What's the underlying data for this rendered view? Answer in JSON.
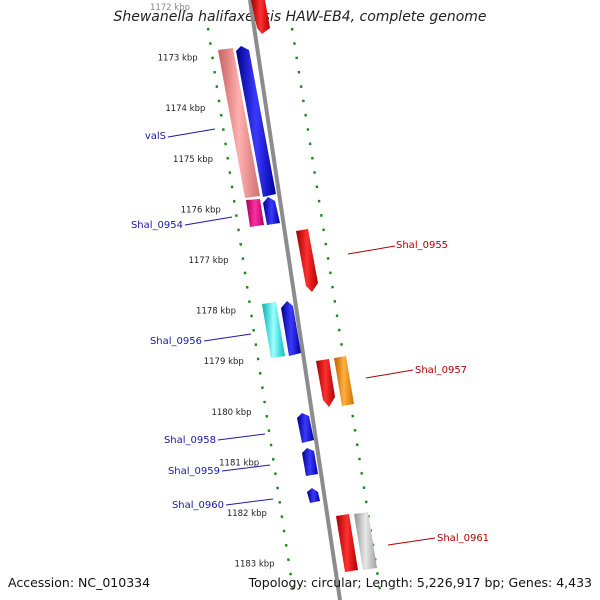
{
  "title": "Shewanella halifaxensis HAW-EB4, complete genome",
  "footer": {
    "accession": "Accession: NC_010334",
    "summary": "Topology: circular; Length: 5,226,917 bp; Genes: 4,433"
  },
  "colors": {
    "backbone": "#8c8c8c",
    "dots": "#1a8a1a",
    "label_left": "#1a1aa6",
    "label_right": "#b00000"
  },
  "ticks": [
    "1172 kbp",
    "1173 kbp",
    "1174 kbp",
    "1175 kbp",
    "1176 kbp",
    "1177 kbp",
    "1178 kbp",
    "1179 kbp",
    "1180 kbp",
    "1181 kbp",
    "1182 kbp",
    "1183 kbp"
  ],
  "genes": [
    {
      "id": "top_red",
      "color": "#ff0000",
      "label": "",
      "side": "right"
    },
    {
      "id": "valS_bar",
      "color": "#f08080",
      "label": "",
      "side": "left"
    },
    {
      "id": "blue_big",
      "color": "#0000ff",
      "label": "",
      "side": "left"
    },
    {
      "id": "valS",
      "color": "#0000ff",
      "label": "valS",
      "side": "left"
    },
    {
      "id": "Shal_0954",
      "color": "#e0007a",
      "label": "Shal_0954",
      "side": "left"
    },
    {
      "id": "blue_small_1",
      "color": "#0000ff",
      "label": "",
      "side": "left"
    },
    {
      "id": "Shal_0955",
      "color": "#ff0000",
      "label": "Shal_0955",
      "side": "right"
    },
    {
      "id": "Shal_0956",
      "color": "#00e5e5",
      "label": "Shal_0956",
      "side": "left"
    },
    {
      "id": "blue_0956b",
      "color": "#0000ff",
      "label": "",
      "side": "left"
    },
    {
      "id": "Shal_0957",
      "color": "#ff8c00",
      "label": "Shal_0957",
      "side": "right"
    },
    {
      "id": "red_0957a",
      "color": "#ff0000",
      "label": "",
      "side": "right"
    },
    {
      "id": "Shal_0958",
      "color": "#0000ff",
      "label": "Shal_0958",
      "side": "left"
    },
    {
      "id": "Shal_0959",
      "color": "#0000ff",
      "label": "Shal_0959",
      "side": "left"
    },
    {
      "id": "Shal_0960",
      "color": "#0000ff",
      "label": "Shal_0960",
      "side": "left"
    },
    {
      "id": "Shal_0961",
      "color": "#c0c0c0",
      "label": "Shal_0961",
      "side": "right"
    },
    {
      "id": "red_0961a",
      "color": "#ff0000",
      "label": "",
      "side": "right"
    }
  ]
}
